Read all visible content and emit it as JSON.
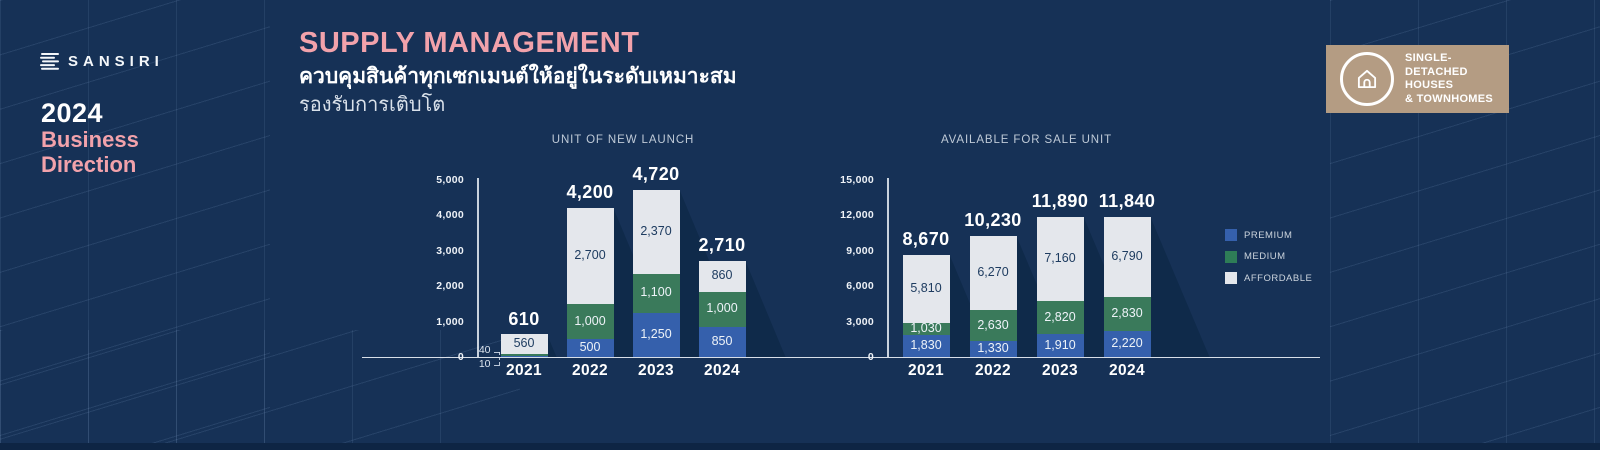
{
  "colors": {
    "background": "#163156",
    "accent_pink": "#f2a2ab",
    "badge_tan": "#b49c83",
    "premium_blue": "#3560ac",
    "medium_green": "#3a7a5b",
    "affordable_gray": "#e4e7ec",
    "bar_shadow": "#0f2a4a",
    "dark_label": "#1e3c60"
  },
  "brand": {
    "logo": "SANSIRI",
    "year": "2024",
    "direction_line1": "Business",
    "direction_line2": "Direction"
  },
  "header": {
    "title": "SUPPLY MANAGEMENT",
    "subtitle_thai_bold": "ควบคุมสินค้าทุกเซกเมนต์ให้อยู่ในระดับเหมาะสม",
    "subtitle_thai_light": "รองรับการเติบโต"
  },
  "badge": {
    "line1": "SINGLE-DETACHED",
    "line2": "HOUSES",
    "line3": "& TOWNHOMES"
  },
  "legend": [
    {
      "label": "PREMIUM",
      "color": "#3560ac"
    },
    {
      "label": "MEDIUM",
      "color": "#2e7d57"
    },
    {
      "label": "AFFORDABLE",
      "color": "#e4e7ec"
    }
  ],
  "chart_data": [
    {
      "type": "bar",
      "stacked": true,
      "title": "UNIT OF NEW LAUNCH",
      "categories": [
        "2021",
        "2022",
        "2023",
        "2024"
      ],
      "series": [
        {
          "name": "PREMIUM",
          "color": "#3560ac",
          "label_color": "#eef3f8",
          "values": [
            10,
            500,
            1250,
            850
          ]
        },
        {
          "name": "MEDIUM",
          "color": "#3a7a5b",
          "label_color": "#eef3f8",
          "values": [
            40,
            1000,
            1100,
            1000
          ]
        },
        {
          "name": "AFFORDABLE",
          "color": "#e4e7ec",
          "label_color": "#1e3c60",
          "values": [
            560,
            2700,
            2370,
            860
          ]
        }
      ],
      "totals": [
        610,
        4200,
        4720,
        2710
      ],
      "ylim": [
        0,
        5000
      ],
      "yticks": [
        "0",
        "1,000",
        "2,000",
        "3,000",
        "4,000",
        "5,000"
      ],
      "grid": false,
      "legend_position": "right"
    },
    {
      "type": "bar",
      "stacked": true,
      "title": "AVAILABLE FOR SALE UNIT",
      "categories": [
        "2021",
        "2022",
        "2023",
        "2024"
      ],
      "series": [
        {
          "name": "PREMIUM",
          "color": "#3560ac",
          "label_color": "#eef3f8",
          "values": [
            1830,
            1330,
            1910,
            2220
          ]
        },
        {
          "name": "MEDIUM",
          "color": "#3a7a5b",
          "label_color": "#eef3f8",
          "values": [
            1030,
            2630,
            2820,
            2830
          ]
        },
        {
          "name": "AFFORDABLE",
          "color": "#e4e7ec",
          "label_color": "#1e3c60",
          "values": [
            5810,
            6270,
            7160,
            6790
          ]
        }
      ],
      "totals": [
        8670,
        10230,
        11890,
        11840
      ],
      "ylim": [
        0,
        15000
      ],
      "yticks": [
        "0",
        "3,000",
        "6,000",
        "9,000",
        "12,000",
        "15,000"
      ],
      "grid": false,
      "legend_position": "right"
    }
  ]
}
